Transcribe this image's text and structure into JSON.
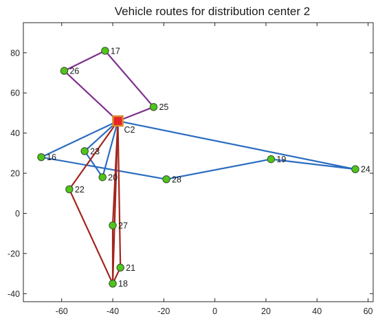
{
  "chart_data": {
    "type": "scatter",
    "title": "Vehicle routes for distribution center 2",
    "xlim": [
      -75,
      62
    ],
    "ylim": [
      -44,
      95
    ],
    "xticks": [
      -60,
      -40,
      -20,
      0,
      20,
      40,
      60
    ],
    "yticks": [
      -40,
      -20,
      0,
      20,
      40,
      60,
      80
    ],
    "grid": false,
    "depot": {
      "id": "C2",
      "x": -38,
      "y": 46
    },
    "nodes": [
      {
        "id": "17",
        "x": -43,
        "y": 81
      },
      {
        "id": "26",
        "x": -59,
        "y": 71
      },
      {
        "id": "25",
        "x": -24,
        "y": 53
      },
      {
        "id": "23",
        "x": -51,
        "y": 31
      },
      {
        "id": "16",
        "x": -68,
        "y": 28
      },
      {
        "id": "20",
        "x": -44,
        "y": 18
      },
      {
        "id": "28",
        "x": -19,
        "y": 17
      },
      {
        "id": "19",
        "x": 22,
        "y": 27
      },
      {
        "id": "24",
        "x": 55,
        "y": 22
      },
      {
        "id": "22",
        "x": -57,
        "y": 12
      },
      {
        "id": "27",
        "x": -40,
        "y": -6
      },
      {
        "id": "21",
        "x": -37,
        "y": -27
      },
      {
        "id": "18",
        "x": -40,
        "y": -35
      }
    ],
    "routes": [
      {
        "color": "#7e2f8e",
        "path": [
          "C2",
          "26",
          "17",
          "25",
          "C2"
        ]
      },
      {
        "color": "#2a6cc0",
        "path": [
          "C2",
          "23",
          "20",
          "C2"
        ]
      },
      {
        "color": "#2a6cc0",
        "path": [
          "C2",
          "24",
          "19",
          "28",
          "16",
          "C2"
        ]
      },
      {
        "color": "#a2251c",
        "path": [
          "C2",
          "22",
          "18",
          "C2"
        ]
      },
      {
        "color": "#a2251c",
        "path": [
          "C2",
          "27",
          "18",
          "21",
          "C2"
        ]
      }
    ],
    "colors": {
      "node_fill": "#52c41a",
      "node_edge": "#2f4f2f",
      "depot_fill": "#e8232a",
      "depot_edge": "#d98a2b"
    }
  }
}
